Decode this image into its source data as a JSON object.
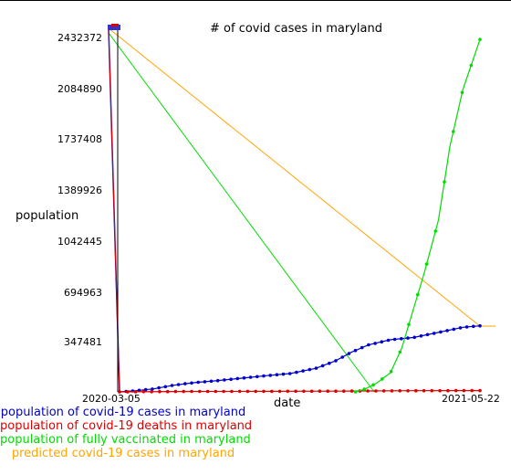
{
  "chart_data": {
    "type": "line",
    "title": "# of covid cases in maryland",
    "xlabel": "date",
    "ylabel": "population",
    "x_tick_labels": [
      "2020-03-05",
      "2021-05-22"
    ],
    "y_tick_labels": [
      "2432372",
      "2084890",
      "1737408",
      "1389926",
      "1042445",
      "694963",
      "347481"
    ],
    "ylim": [
      0,
      2432372
    ],
    "xlim": [
      "2020-03-05",
      "2021-05-22"
    ],
    "grid": false,
    "legend_placement": "below-left",
    "series": [
      {
        "name": "population of covid-19 cases in maryland",
        "color": "#0000cc",
        "points": [
          [
            "2020-03-05",
            0
          ],
          [
            "2020-03-25",
            8000
          ],
          [
            "2020-04-15",
            20000
          ],
          [
            "2020-05-10",
            45000
          ],
          [
            "2020-06-05",
            63000
          ],
          [
            "2020-07-01",
            75000
          ],
          [
            "2020-08-01",
            93000
          ],
          [
            "2020-09-01",
            110000
          ],
          [
            "2020-10-01",
            125000
          ],
          [
            "2020-11-01",
            160000
          ],
          [
            "2020-11-25",
            210000
          ],
          [
            "2020-12-15",
            270000
          ],
          [
            "2021-01-05",
            320000
          ],
          [
            "2021-02-01",
            355000
          ],
          [
            "2021-03-01",
            370000
          ],
          [
            "2021-04-01",
            405000
          ],
          [
            "2021-05-01",
            440000
          ],
          [
            "2021-05-22",
            450000
          ]
        ]
      },
      {
        "name": "population of covid-19 deaths in maryland",
        "color": "#dd0000",
        "points": [
          [
            "2020-03-05",
            0
          ],
          [
            "2020-06-01",
            2800
          ],
          [
            "2020-09-01",
            3800
          ],
          [
            "2020-12-01",
            5000
          ],
          [
            "2021-03-01",
            7800
          ],
          [
            "2021-05-22",
            8800
          ]
        ]
      },
      {
        "name": "population of fully vaccinated in maryland",
        "color": "#00dd00",
        "points": [
          [
            "2020-12-20",
            0
          ],
          [
            "2021-01-01",
            20000
          ],
          [
            "2021-01-15",
            60000
          ],
          [
            "2021-02-01",
            130000
          ],
          [
            "2021-02-15",
            300000
          ],
          [
            "2021-03-01",
            560000
          ],
          [
            "2021-03-15",
            820000
          ],
          [
            "2021-04-01",
            1170000
          ],
          [
            "2021-04-15",
            1670000
          ],
          [
            "2021-05-01",
            2060000
          ],
          [
            "2021-05-22",
            2400000
          ]
        ]
      },
      {
        "name": "predicted covid-19 cases in maryland",
        "color": "#ffa500",
        "points": []
      }
    ]
  }
}
